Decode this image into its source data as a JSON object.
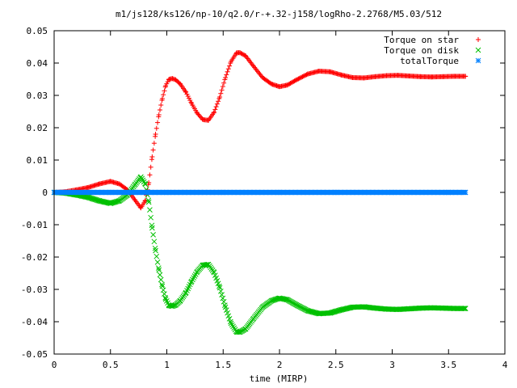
{
  "chart_data": {
    "type": "scatter",
    "title": "m1/js128/ks126/np-10/q2.0/r-+.32-j158/logRho-2.2768/M5.03/512",
    "xlabel": "time (MIRP)",
    "ylabel": "",
    "xlim": [
      0,
      4
    ],
    "ylim": [
      -0.05,
      0.05
    ],
    "x_ticks": [
      0,
      0.5,
      1,
      1.5,
      2,
      2.5,
      3,
      3.5,
      4
    ],
    "x_tick_labels": [
      "0",
      "0.5",
      "1",
      "1.5",
      "2",
      "2.5",
      "3",
      "3.5",
      "4"
    ],
    "y_ticks": [
      -0.05,
      -0.04,
      -0.03,
      -0.02,
      -0.01,
      0,
      0.01,
      0.02,
      0.03,
      0.04,
      0.05
    ],
    "y_tick_labels": [
      "-0.05",
      "-0.04",
      "-0.03",
      "-0.02",
      "-0.01",
      "0",
      "0.01",
      "0.02",
      "0.03",
      "0.04",
      "0.05"
    ],
    "grid": false,
    "legend_position": "top-right",
    "series": [
      {
        "name": "Torque on star",
        "marker": "plus",
        "color": "#ff0000",
        "points": [
          [
            0.0,
            0.0
          ],
          [
            0.1,
            0.0002
          ],
          [
            0.2,
            0.0008
          ],
          [
            0.3,
            0.0015
          ],
          [
            0.4,
            0.0026
          ],
          [
            0.5,
            0.0034
          ],
          [
            0.58,
            0.0026
          ],
          [
            0.65,
            0.0008
          ],
          [
            0.72,
            -0.0025
          ],
          [
            0.77,
            -0.0048
          ],
          [
            0.81,
            -0.0025
          ],
          [
            0.84,
            0.003
          ],
          [
            0.87,
            0.011
          ],
          [
            0.9,
            0.018
          ],
          [
            0.93,
            0.024
          ],
          [
            0.96,
            0.029
          ],
          [
            0.99,
            0.033
          ],
          [
            1.02,
            0.035
          ],
          [
            1.05,
            0.0352
          ],
          [
            1.08,
            0.0348
          ],
          [
            1.12,
            0.0335
          ],
          [
            1.17,
            0.031
          ],
          [
            1.22,
            0.0275
          ],
          [
            1.27,
            0.0245
          ],
          [
            1.32,
            0.0225
          ],
          [
            1.37,
            0.0223
          ],
          [
            1.42,
            0.0248
          ],
          [
            1.47,
            0.0295
          ],
          [
            1.52,
            0.0355
          ],
          [
            1.57,
            0.0405
          ],
          [
            1.62,
            0.0432
          ],
          [
            1.65,
            0.0432
          ],
          [
            1.7,
            0.0422
          ],
          [
            1.77,
            0.039
          ],
          [
            1.85,
            0.0355
          ],
          [
            1.93,
            0.0335
          ],
          [
            2.0,
            0.0327
          ],
          [
            2.07,
            0.0332
          ],
          [
            2.15,
            0.0348
          ],
          [
            2.25,
            0.0366
          ],
          [
            2.35,
            0.0375
          ],
          [
            2.45,
            0.0373
          ],
          [
            2.55,
            0.0363
          ],
          [
            2.65,
            0.0355
          ],
          [
            2.75,
            0.0354
          ],
          [
            2.85,
            0.0358
          ],
          [
            2.95,
            0.0361
          ],
          [
            3.05,
            0.0362
          ],
          [
            3.15,
            0.036
          ],
          [
            3.25,
            0.0358
          ],
          [
            3.35,
            0.0357
          ],
          [
            3.45,
            0.0358
          ],
          [
            3.55,
            0.0359
          ],
          [
            3.65,
            0.0359
          ]
        ]
      },
      {
        "name": "Torque on disk",
        "marker": "cross",
        "color": "#00c000",
        "points": [
          [
            0.0,
            0.0
          ],
          [
            0.1,
            -0.0002
          ],
          [
            0.2,
            -0.0008
          ],
          [
            0.3,
            -0.0015
          ],
          [
            0.4,
            -0.0026
          ],
          [
            0.5,
            -0.0034
          ],
          [
            0.58,
            -0.0026
          ],
          [
            0.65,
            -0.0008
          ],
          [
            0.72,
            0.0025
          ],
          [
            0.77,
            0.0048
          ],
          [
            0.81,
            0.0025
          ],
          [
            0.84,
            -0.003
          ],
          [
            0.87,
            -0.011
          ],
          [
            0.9,
            -0.018
          ],
          [
            0.93,
            -0.024
          ],
          [
            0.96,
            -0.029
          ],
          [
            0.99,
            -0.033
          ],
          [
            1.02,
            -0.035
          ],
          [
            1.05,
            -0.0352
          ],
          [
            1.08,
            -0.0348
          ],
          [
            1.12,
            -0.0335
          ],
          [
            1.17,
            -0.031
          ],
          [
            1.22,
            -0.0275
          ],
          [
            1.27,
            -0.0245
          ],
          [
            1.32,
            -0.0225
          ],
          [
            1.37,
            -0.0223
          ],
          [
            1.42,
            -0.0248
          ],
          [
            1.47,
            -0.0295
          ],
          [
            1.52,
            -0.0355
          ],
          [
            1.57,
            -0.0405
          ],
          [
            1.62,
            -0.0432
          ],
          [
            1.65,
            -0.0432
          ],
          [
            1.7,
            -0.0422
          ],
          [
            1.77,
            -0.039
          ],
          [
            1.85,
            -0.0355
          ],
          [
            1.93,
            -0.0335
          ],
          [
            2.0,
            -0.0327
          ],
          [
            2.07,
            -0.0332
          ],
          [
            2.15,
            -0.0348
          ],
          [
            2.25,
            -0.0366
          ],
          [
            2.35,
            -0.0375
          ],
          [
            2.45,
            -0.0373
          ],
          [
            2.55,
            -0.0363
          ],
          [
            2.65,
            -0.0355
          ],
          [
            2.75,
            -0.0354
          ],
          [
            2.85,
            -0.0358
          ],
          [
            2.95,
            -0.0361
          ],
          [
            3.05,
            -0.0362
          ],
          [
            3.15,
            -0.036
          ],
          [
            3.25,
            -0.0358
          ],
          [
            3.35,
            -0.0357
          ],
          [
            3.45,
            -0.0358
          ],
          [
            3.55,
            -0.0359
          ],
          [
            3.65,
            -0.0359
          ]
        ]
      },
      {
        "name": "totalTorque",
        "marker": "star",
        "color": "#0080ff",
        "points": [
          [
            0.0,
            0.0
          ],
          [
            0.5,
            0.0
          ],
          [
            1.0,
            0.0
          ],
          [
            1.5,
            0.0
          ],
          [
            2.0,
            0.0
          ],
          [
            2.5,
            0.0
          ],
          [
            3.0,
            0.0
          ],
          [
            3.5,
            0.0
          ],
          [
            3.65,
            0.0
          ]
        ]
      }
    ]
  }
}
